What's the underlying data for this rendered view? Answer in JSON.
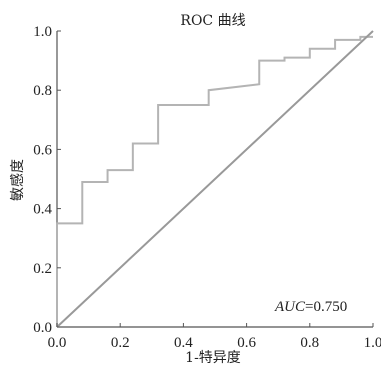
{
  "chart_data": {
    "type": "line",
    "title": "ROC 曲线",
    "xlabel": "1-特异度",
    "ylabel": "敏感度",
    "xlim": [
      0.0,
      1.0
    ],
    "ylim": [
      0.0,
      1.0
    ],
    "x_ticks": [
      "0.0",
      "0.2",
      "0.4",
      "0.6",
      "0.8",
      "1.0"
    ],
    "y_ticks": [
      "0.0",
      "0.2",
      "0.4",
      "0.6",
      "0.8",
      "1.0"
    ],
    "grid": false,
    "legend": "none",
    "annotation": {
      "italic": "AUC",
      "text": "=0.750"
    },
    "series": [
      {
        "x": [
          0.0,
          0.0,
          0.08,
          0.08,
          0.16,
          0.16,
          0.24,
          0.24,
          0.32,
          0.32,
          0.48,
          0.48,
          0.64,
          0.64,
          0.72,
          0.72,
          0.8,
          0.8,
          0.88,
          0.88,
          0.96,
          0.96,
          1.0
        ],
        "y": [
          0.0,
          0.35,
          0.35,
          0.49,
          0.49,
          0.53,
          0.53,
          0.62,
          0.62,
          0.75,
          0.75,
          0.8,
          0.82,
          0.9,
          0.9,
          0.91,
          0.91,
          0.94,
          0.94,
          0.97,
          0.97,
          0.98,
          0.98
        ],
        "color": "#b4b4b4"
      },
      {
        "x": [
          0.0,
          1.0
        ],
        "y": [
          0.0,
          1.0
        ],
        "color": "#999999"
      }
    ]
  }
}
